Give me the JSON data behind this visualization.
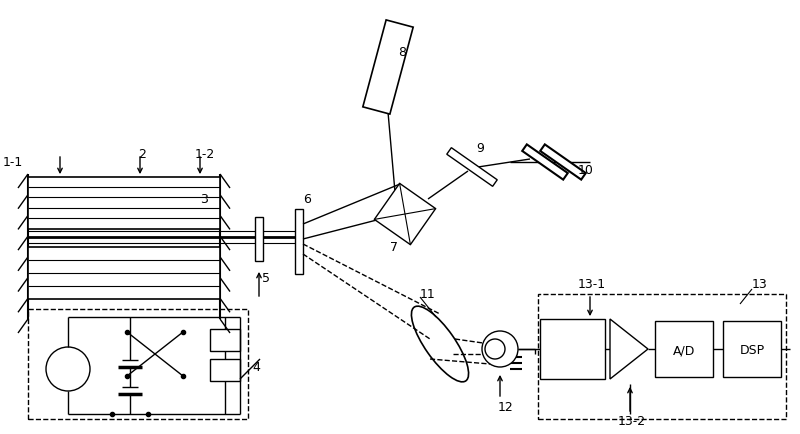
{
  "fig_width": 8.0,
  "fig_height": 4.35,
  "dpi": 100,
  "bg_color": "#ffffff"
}
